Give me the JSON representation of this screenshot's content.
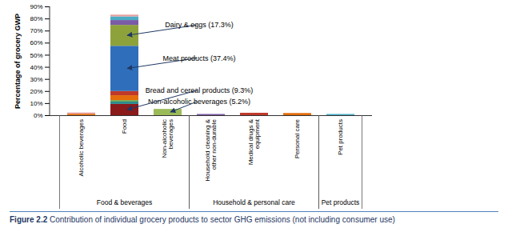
{
  "chart_data": {
    "type": "bar",
    "stacked": true,
    "ylabel": "Percentage of grocery GWP",
    "caption": "Figure 2.2 Contribution of individual grocery products to sector GHG emissions (not including consumer use)",
    "categories": [
      "Alcoholic beverages",
      "Food",
      "Non-alcoholic beverages",
      "Household cleaning & other non-durable",
      "Medical drugs & equipment",
      "Personal care",
      "Pet products"
    ],
    "groups": [
      {
        "label": "Food & beverages",
        "categories": [
          "Alcoholic beverages",
          "Food",
          "Non-alcoholic beverages"
        ]
      },
      {
        "label": "Household & personal care",
        "categories": [
          "Household cleaning & other non-durable",
          "Medical drugs & equipment",
          "Personal care"
        ]
      },
      {
        "label": "Pet products",
        "categories": [
          "Pet products"
        ]
      }
    ],
    "ylim": [
      0,
      90
    ],
    "yticks": [
      {
        "value": 0,
        "label": "0%"
      },
      {
        "value": 10,
        "label": "10%"
      },
      {
        "value": 20,
        "label": "20%"
      },
      {
        "value": 30,
        "label": "30%"
      },
      {
        "value": 40,
        "label": "40%"
      },
      {
        "value": 50,
        "label": "50%"
      },
      {
        "value": 60,
        "label": "60%"
      },
      {
        "value": 70,
        "label": "70%"
      },
      {
        "value": 80,
        "label": "80%"
      },
      {
        "value": 90,
        "label": "90%"
      }
    ],
    "grid": false,
    "series": [
      {
        "name": "Bread and cereal products (9.3%)",
        "color": "#8b1a1a",
        "values": [
          null,
          9.3,
          null,
          null,
          null,
          null,
          null
        ]
      },
      {
        "color": "#2e8b8b",
        "values": [
          null,
          2.0,
          null,
          null,
          null,
          null,
          null
        ]
      },
      {
        "color": "#6aa84f",
        "values": [
          null,
          1.2,
          null,
          null,
          null,
          null,
          null
        ]
      },
      {
        "color": "#e46c0a",
        "values": [
          1.2,
          4.0,
          null,
          null,
          null,
          1.8,
          null
        ]
      },
      {
        "color": "#c0392b",
        "values": [
          null,
          3.5,
          null,
          null,
          2.0,
          null,
          null
        ]
      },
      {
        "name": "Meat products (37.4%)",
        "color": "#2f6eba",
        "values": [
          null,
          37.4,
          null,
          null,
          null,
          null,
          null
        ]
      },
      {
        "name": "Dairy & eggs (17.3%)",
        "color": "#8ea23c",
        "values": [
          null,
          17.3,
          null,
          null,
          null,
          null,
          null
        ]
      },
      {
        "color": "#7b5aa6",
        "values": [
          null,
          4.0,
          null,
          1.0,
          null,
          null,
          null
        ]
      },
      {
        "color": "#4bacc6",
        "values": [
          null,
          3.0,
          null,
          null,
          null,
          null,
          1.0
        ]
      },
      {
        "color": "#e6a0a0",
        "values": [
          1.0,
          1.5,
          null,
          null,
          null,
          null,
          null
        ]
      },
      {
        "name": "Non-alcoholic beverages (5.2%)",
        "color": "#9bbb59",
        "values": [
          null,
          null,
          5.2,
          null,
          null,
          null,
          null
        ]
      }
    ]
  }
}
